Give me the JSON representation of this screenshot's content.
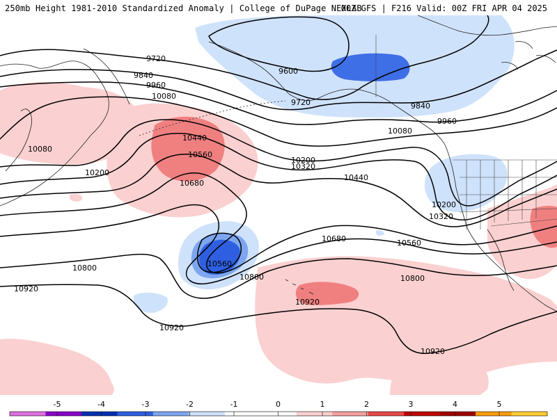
{
  "header": {
    "title_left": "250mb Height 1981-2010 Standardized Anomaly | College of DuPage NEXLAB",
    "title_right": "00Z GFS | F216 Valid: 00Z FRI APR 04 2025"
  },
  "contour_labels": [
    {
      "id": "9720",
      "text": "9720"
    },
    {
      "id": "9600",
      "text": "9600"
    },
    {
      "id": "9840a",
      "text": "9840"
    },
    {
      "id": "9960a",
      "text": "9960"
    },
    {
      "id": "9720b",
      "text": "9720"
    },
    {
      "id": "9840b",
      "text": "9840"
    },
    {
      "id": "9960b",
      "text": "9960"
    },
    {
      "id": "10080a",
      "text": "10080"
    },
    {
      "id": "10080b",
      "text": "10080"
    },
    {
      "id": "10080c",
      "text": "10080"
    },
    {
      "id": "10440a",
      "text": "10440"
    },
    {
      "id": "10560a",
      "text": "10560"
    },
    {
      "id": "10200a",
      "text": "10200"
    },
    {
      "id": "10200b",
      "text": "10200"
    },
    {
      "id": "10320a",
      "text": "10320"
    },
    {
      "id": "10440b",
      "text": "10440"
    },
    {
      "id": "10680a",
      "text": "10680"
    },
    {
      "id": "10200c",
      "text": "10200"
    },
    {
      "id": "10320b",
      "text": "10320"
    },
    {
      "id": "10560b",
      "text": "10560"
    },
    {
      "id": "10680b",
      "text": "10680"
    },
    {
      "id": "10560c",
      "text": "10560"
    },
    {
      "id": "10800a",
      "text": "10800"
    },
    {
      "id": "10800b",
      "text": "10800"
    },
    {
      "id": "10800c",
      "text": "10800"
    },
    {
      "id": "10920a",
      "text": "10920"
    },
    {
      "id": "10920b",
      "text": "10920"
    },
    {
      "id": "10920c",
      "text": "10920"
    },
    {
      "id": "10920d",
      "text": "10920"
    }
  ],
  "legend": {
    "ticks": [
      "-5",
      "-4",
      "-3",
      "-2",
      "-1",
      "0",
      "1",
      "2",
      "3",
      "4",
      "5"
    ],
    "colors": [
      "#e070e0",
      "#8a00c8",
      "#0030b0",
      "#2e5fe0",
      "#7ea6f0",
      "#cfe2fb",
      "#ffffff",
      "#ffffff",
      "#fbd0d0",
      "#f7a0a0",
      "#e84848",
      "#c00000",
      "#a00000",
      "#ff9e00",
      "#ffcc33"
    ]
  }
}
